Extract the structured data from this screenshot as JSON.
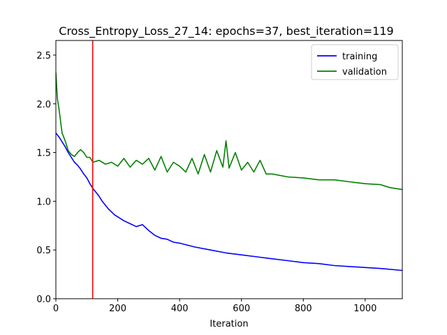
{
  "chart_data": {
    "type": "line",
    "title": "Cross_Entropy_Loss_27_14: epochs=37, best_iteration=119",
    "xlabel": "Iteration",
    "ylabel": "",
    "xlim": [
      0,
      1120
    ],
    "ylim": [
      0,
      2.65
    ],
    "xticks": [
      0,
      200,
      400,
      600,
      800,
      1000
    ],
    "xtick_labels": [
      "0",
      "200",
      "400",
      "600",
      "800",
      "1000"
    ],
    "yticks": [
      0.0,
      0.5,
      1.0,
      1.5,
      2.0,
      2.5
    ],
    "ytick_labels": [
      "0.0",
      "0.5",
      "1.0",
      "1.5",
      "2.0",
      "2.5"
    ],
    "grid": false,
    "legend_position": "top-right",
    "best_iteration_line": {
      "x": 119,
      "color": "#ff0000"
    },
    "series": [
      {
        "name": "training",
        "color": "#0000ff",
        "x": [
          0,
          10,
          20,
          30,
          40,
          50,
          60,
          70,
          80,
          90,
          100,
          110,
          120,
          130,
          140,
          150,
          160,
          170,
          180,
          190,
          200,
          220,
          240,
          260,
          280,
          300,
          320,
          340,
          360,
          380,
          400,
          450,
          500,
          550,
          600,
          650,
          700,
          750,
          800,
          850,
          900,
          950,
          1000,
          1050,
          1120
        ],
        "y": [
          1.7,
          1.66,
          1.61,
          1.56,
          1.5,
          1.45,
          1.4,
          1.37,
          1.33,
          1.28,
          1.24,
          1.18,
          1.13,
          1.09,
          1.05,
          1.0,
          0.96,
          0.92,
          0.89,
          0.86,
          0.84,
          0.8,
          0.77,
          0.74,
          0.76,
          0.7,
          0.65,
          0.62,
          0.61,
          0.58,
          0.57,
          0.53,
          0.5,
          0.47,
          0.45,
          0.43,
          0.41,
          0.39,
          0.37,
          0.36,
          0.34,
          0.33,
          0.32,
          0.31,
          0.29
        ]
      },
      {
        "name": "validation",
        "color": "#008000",
        "x": [
          0,
          5,
          10,
          20,
          30,
          40,
          50,
          60,
          70,
          80,
          90,
          100,
          110,
          120,
          140,
          160,
          180,
          200,
          220,
          240,
          260,
          280,
          300,
          320,
          340,
          360,
          380,
          400,
          420,
          440,
          460,
          480,
          500,
          520,
          540,
          550,
          560,
          580,
          600,
          620,
          640,
          660,
          680,
          700,
          750,
          800,
          850,
          900,
          950,
          1000,
          1050,
          1080,
          1100,
          1120
        ],
        "y": [
          2.32,
          2.05,
          1.95,
          1.7,
          1.62,
          1.52,
          1.48,
          1.46,
          1.5,
          1.53,
          1.5,
          1.45,
          1.45,
          1.4,
          1.42,
          1.38,
          1.4,
          1.36,
          1.44,
          1.35,
          1.42,
          1.38,
          1.44,
          1.32,
          1.46,
          1.3,
          1.4,
          1.36,
          1.3,
          1.44,
          1.28,
          1.48,
          1.3,
          1.52,
          1.35,
          1.62,
          1.34,
          1.5,
          1.32,
          1.4,
          1.3,
          1.42,
          1.28,
          1.28,
          1.25,
          1.24,
          1.22,
          1.22,
          1.2,
          1.18,
          1.17,
          1.14,
          1.13,
          1.12
        ]
      }
    ]
  }
}
